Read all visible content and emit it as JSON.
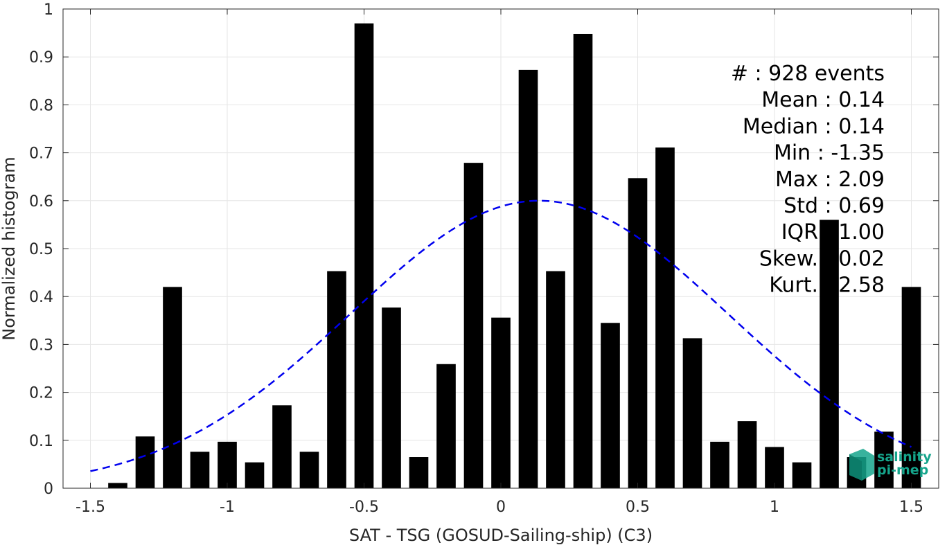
{
  "chart_data": {
    "type": "bar",
    "xlabel": "SAT - TSG (GOSUD-Sailing-ship) (C3)",
    "ylabel": "Normalized histogram",
    "xlim": [
      -1.6,
      1.6
    ],
    "ylim": [
      0,
      1
    ],
    "xticks": [
      -1.5,
      -1,
      -0.5,
      0,
      0.5,
      1,
      1.5
    ],
    "xtick_labels": [
      "-1.5",
      "-1",
      "-0.5",
      "0",
      "0.5",
      "1",
      "1.5"
    ],
    "yticks": [
      0,
      0.1,
      0.2,
      0.3,
      0.4,
      0.5,
      0.6,
      0.7,
      0.8,
      0.9,
      1
    ],
    "ytick_labels": [
      "0",
      "0.1",
      "0.2",
      "0.3",
      "0.4",
      "0.5",
      "0.6",
      "0.7",
      "0.8",
      "0.9",
      "1"
    ],
    "grid": true,
    "bar_color": "#000000",
    "bar_width": 0.07,
    "bars": [
      {
        "x": -1.4,
        "value": 0.011
      },
      {
        "x": -1.3,
        "value": 0.108
      },
      {
        "x": -1.2,
        "value": 0.42
      },
      {
        "x": -1.1,
        "value": 0.076
      },
      {
        "x": -1.0,
        "value": 0.097
      },
      {
        "x": -0.9,
        "value": 0.054
      },
      {
        "x": -0.8,
        "value": 0.173
      },
      {
        "x": -0.7,
        "value": 0.076
      },
      {
        "x": -0.6,
        "value": 0.453
      },
      {
        "x": -0.5,
        "value": 0.97
      },
      {
        "x": -0.4,
        "value": 0.377
      },
      {
        "x": -0.3,
        "value": 0.065
      },
      {
        "x": -0.2,
        "value": 0.259
      },
      {
        "x": -0.1,
        "value": 0.679
      },
      {
        "x": 0.0,
        "value": 0.356
      },
      {
        "x": 0.1,
        "value": 0.873
      },
      {
        "x": 0.2,
        "value": 0.453
      },
      {
        "x": 0.3,
        "value": 0.948
      },
      {
        "x": 0.4,
        "value": 0.345
      },
      {
        "x": 0.5,
        "value": 0.647
      },
      {
        "x": 0.6,
        "value": 0.711
      },
      {
        "x": 0.7,
        "value": 0.313
      },
      {
        "x": 0.8,
        "value": 0.097
      },
      {
        "x": 0.9,
        "value": 0.14
      },
      {
        "x": 1.0,
        "value": 0.086
      },
      {
        "x": 1.1,
        "value": 0.054
      },
      {
        "x": 1.2,
        "value": 0.56
      },
      {
        "x": 1.3,
        "value": 0.065
      },
      {
        "x": 1.4,
        "value": 0.118
      },
      {
        "x": 1.5,
        "value": 0.42
      }
    ],
    "fit_curve": {
      "style": "dashed",
      "color": "#0000ee",
      "mean": 0.14,
      "peak": 0.6,
      "sigma": 0.69,
      "x_range": [
        -1.5,
        1.5
      ]
    },
    "stats": [
      {
        "label": "#  : 928 events"
      },
      {
        "label": "Mean : 0.14"
      },
      {
        "label": "Median : 0.14"
      },
      {
        "label": "Min : -1.35"
      },
      {
        "label": "Max : 2.09"
      },
      {
        "label": "Std : 0.69"
      },
      {
        "label": "IQR : 1.00"
      },
      {
        "label": "Skew. : 0.02"
      },
      {
        "label": "Kurt. : 2.58"
      }
    ]
  },
  "logo": {
    "line1": "salinity",
    "line2": "pi-mep",
    "color": "#15a58c"
  }
}
